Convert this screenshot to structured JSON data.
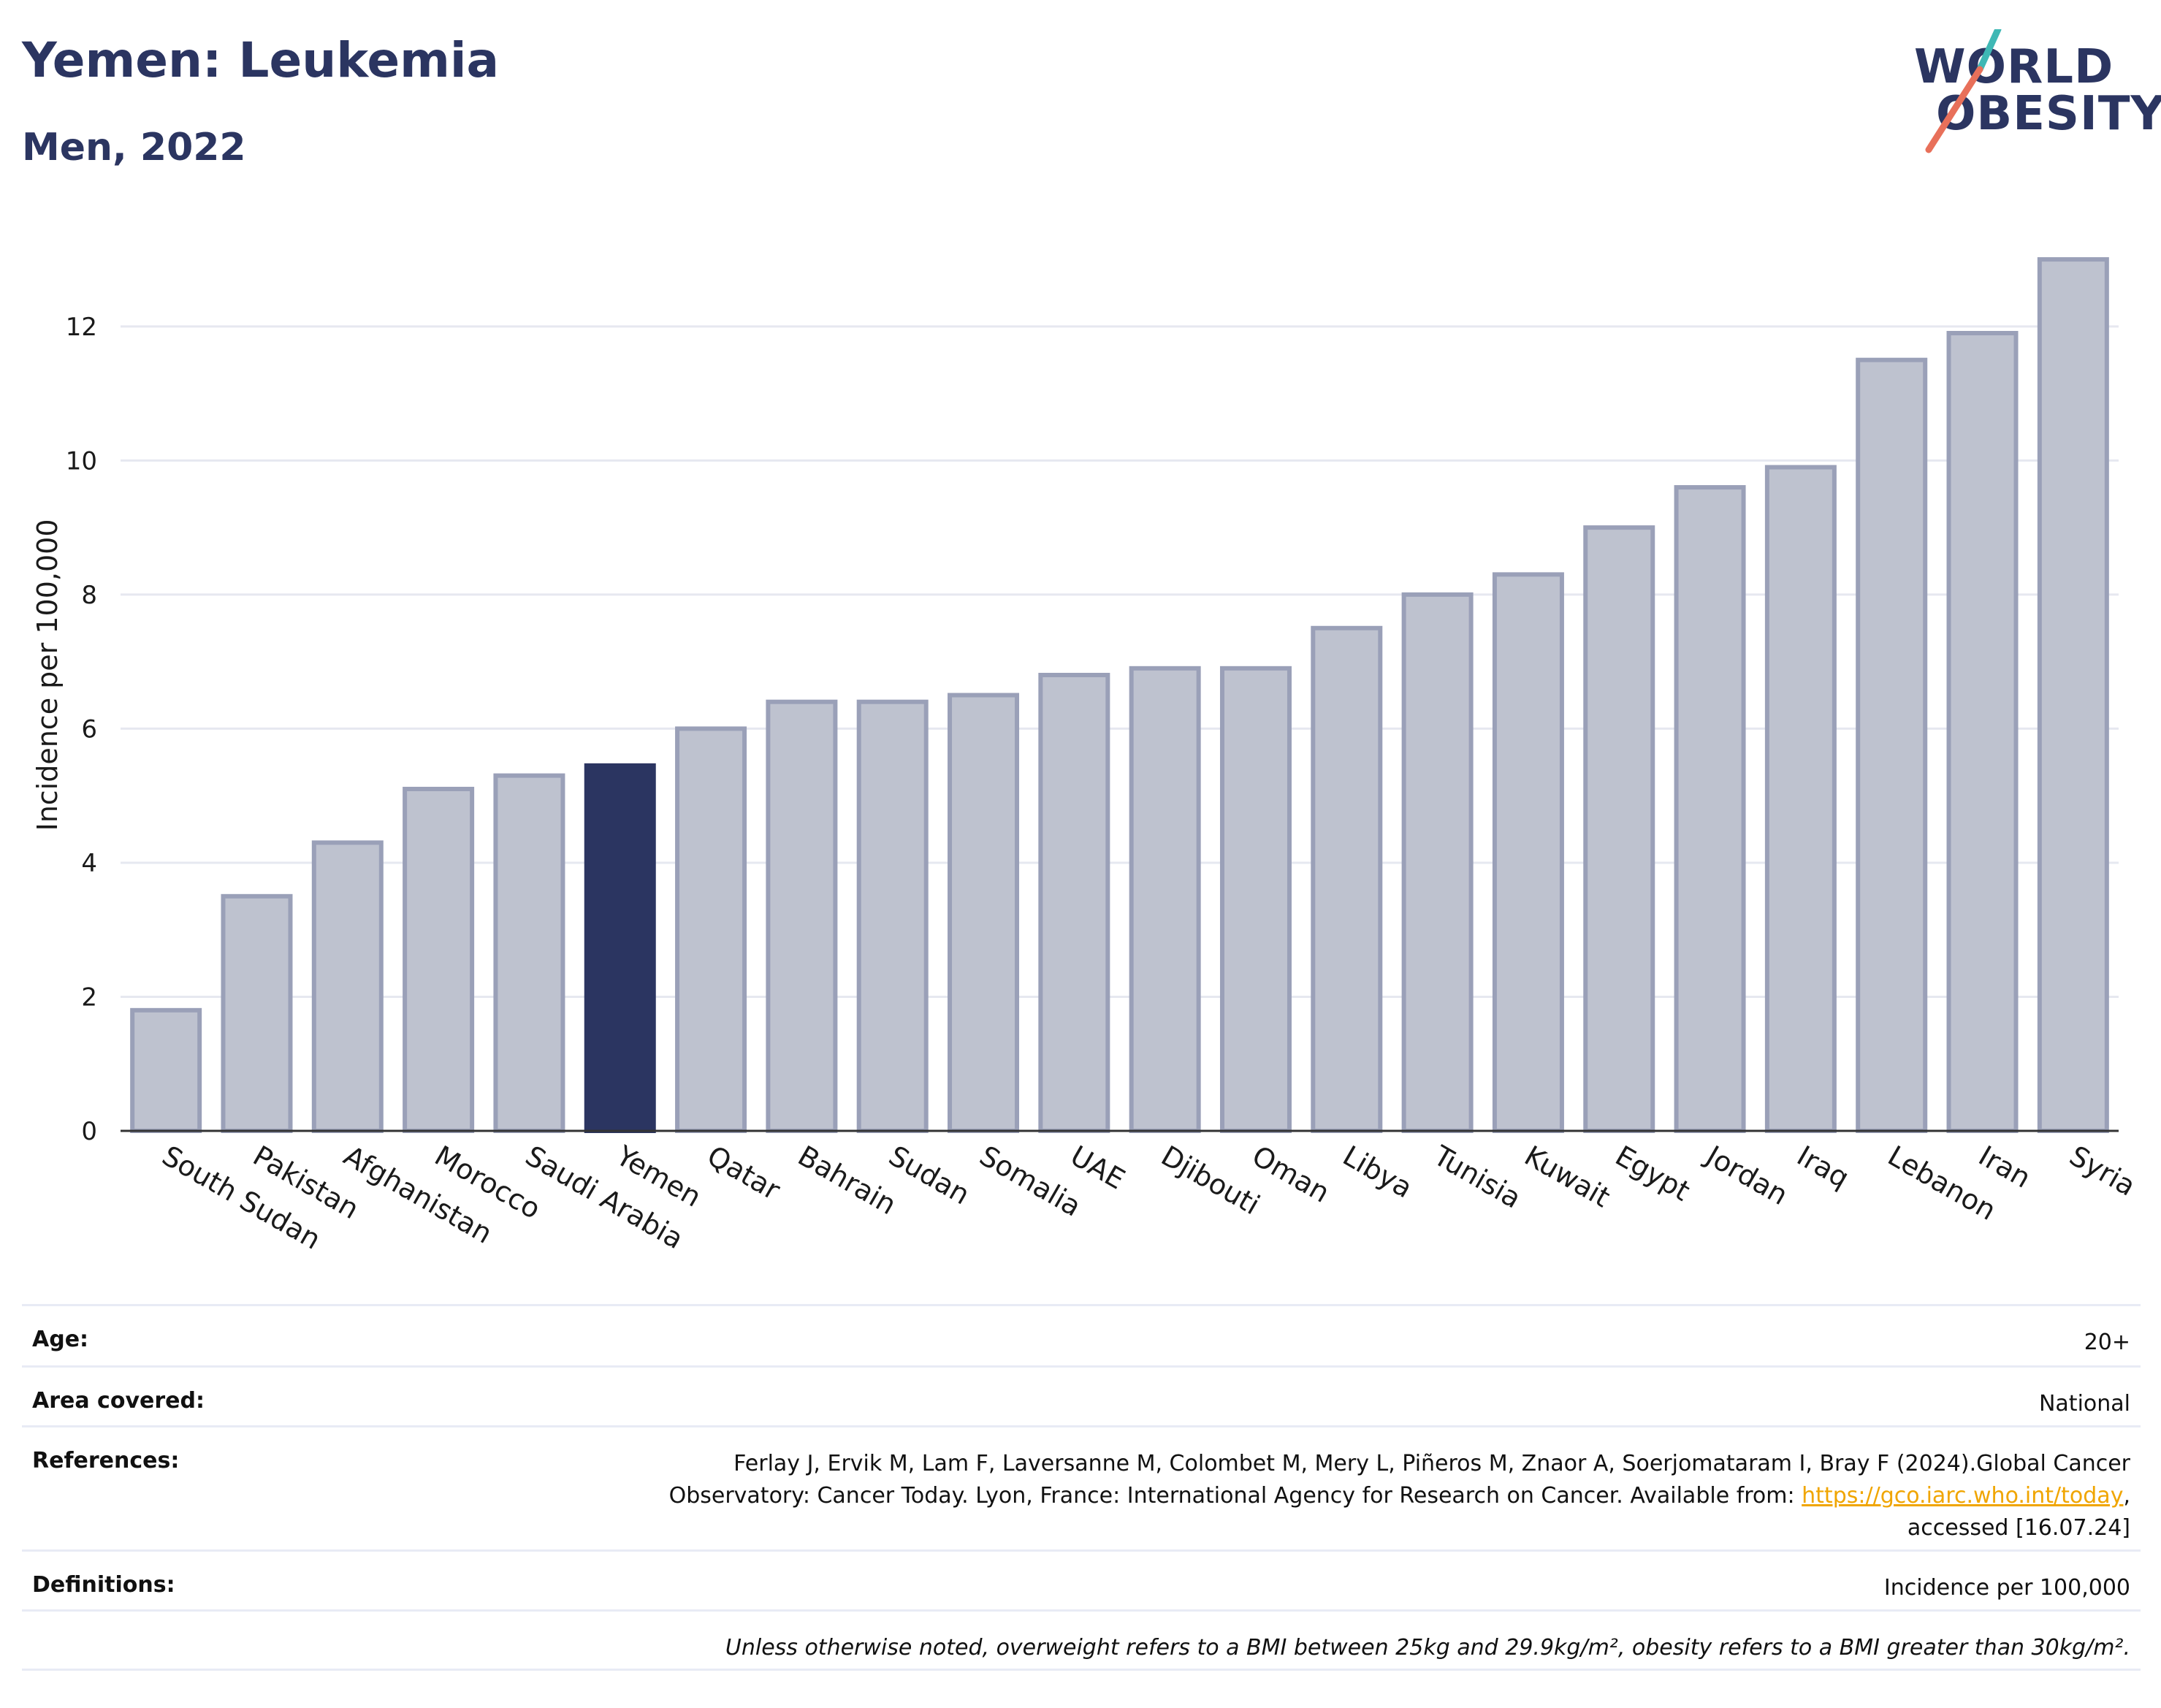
{
  "header": {
    "title": "Yemen: Leukemia",
    "subtitle": "Men, 2022",
    "logo_line1": "WORLD",
    "logo_line2": "OBESITY"
  },
  "chart_data": {
    "type": "bar",
    "ylabel": "Incidence per 100,000",
    "ylim": [
      0,
      13.6
    ],
    "yticks": [
      0,
      2,
      4,
      6,
      8,
      10,
      12
    ],
    "grid": true,
    "highlight": "Yemen",
    "colors": {
      "default": "#bec2cf",
      "default_border": "#9aa0b8",
      "highlight": "#2b3561"
    },
    "categories": [
      "South Sudan",
      "Pakistan",
      "Afghanistan",
      "Morocco",
      "Saudi Arabia",
      "Yemen",
      "Qatar",
      "Bahrain",
      "Sudan",
      "Somalia",
      "UAE",
      "Djibouti",
      "Oman",
      "Libya",
      "Tunisia",
      "Kuwait",
      "Egypt",
      "Jordan",
      "Iraq",
      "Lebanon",
      "Iran",
      "Syria"
    ],
    "values": [
      1.8,
      3.5,
      4.3,
      5.1,
      5.3,
      5.45,
      6.0,
      6.4,
      6.4,
      6.5,
      6.8,
      6.9,
      6.9,
      7.5,
      8.0,
      8.3,
      9.0,
      9.6,
      9.9,
      11.5,
      11.9,
      13.0
    ]
  },
  "meta": {
    "age_label": "Age:",
    "age_value": "20+",
    "area_label": "Area covered:",
    "area_value": "National",
    "references_label": "References:",
    "references_line1": "Ferlay J, Ervik M, Lam F, Laversanne M, Colombet M, Mery L, Piñeros M, Znaor A, Soerjomataram I, Bray F (2024).Global Cancer",
    "references_line2": "Observatory: Cancer Today. Lyon, France: International Agency for Research on Cancer. Available from: ",
    "references_link": "https://gco.iarc.who.int/today",
    "references_after_link": ",",
    "references_line3": "accessed [16.07.24]",
    "definitions_label": "Definitions:",
    "definitions_value": "Incidence per 100,000",
    "note": "Unless otherwise noted, overweight refers to a BMI between 25kg and 29.9kg/m², obesity refers to a BMI greater than 30kg/m²."
  }
}
